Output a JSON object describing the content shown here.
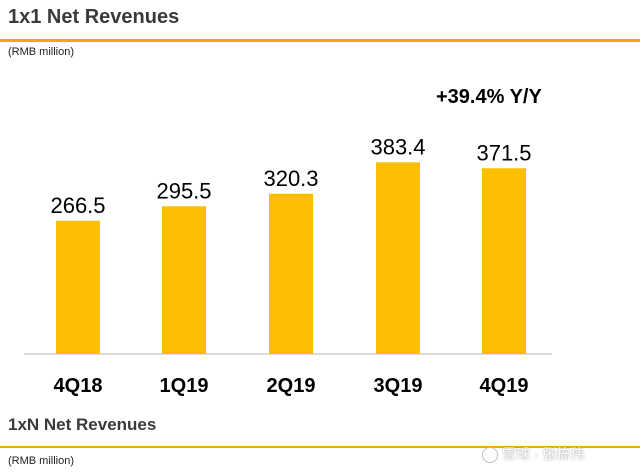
{
  "section1": {
    "title": "1x1 Net Revenues",
    "unit": "(RMB million)",
    "growth_annotation": "+39.4% Y/Y"
  },
  "section2": {
    "title": "1xN Net Revenues",
    "unit": "(RMB million)"
  },
  "watermark": {
    "text": "雪球 · 张栋伟",
    "icon": "snowball-logo-icon"
  },
  "colors": {
    "bar": "#fbbe00",
    "accent_rule": "#f5a800",
    "baseline": "#cfcfcf"
  },
  "chart_data": {
    "type": "bar",
    "title": "1x1 Net Revenues",
    "ylabel": "(RMB million)",
    "xlabel": "",
    "categories": [
      "4Q18",
      "1Q19",
      "2Q19",
      "3Q19",
      "4Q19"
    ],
    "values": [
      266.5,
      295.5,
      320.3,
      383.4,
      371.5
    ],
    "data_labels": [
      "266.5",
      "295.5",
      "320.3",
      "383.4",
      "371.5"
    ],
    "ylim": [
      0,
      400
    ],
    "grid": false,
    "legend": "none",
    "annotations": [
      "+39.4% Y/Y"
    ]
  }
}
